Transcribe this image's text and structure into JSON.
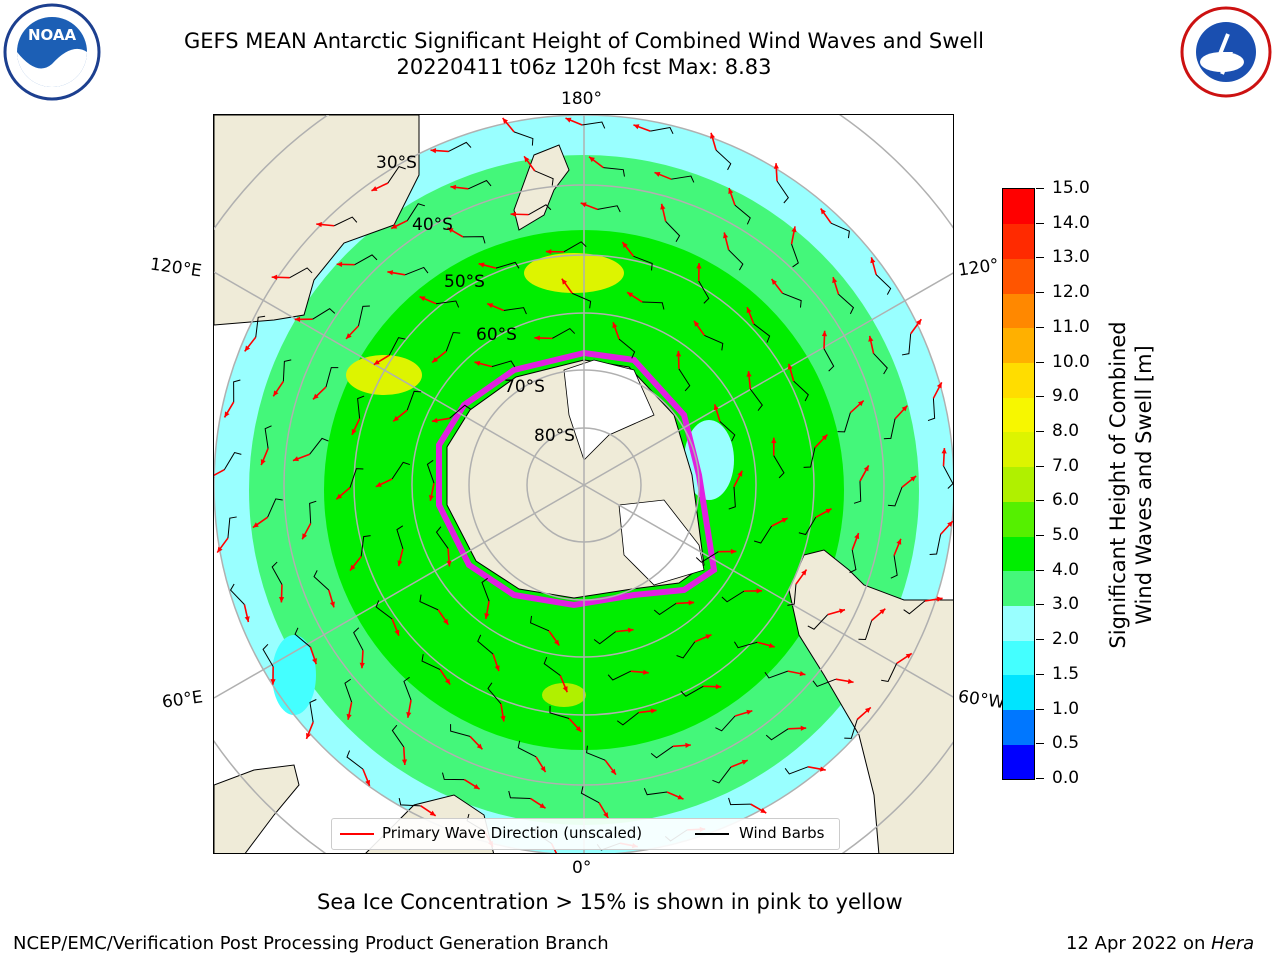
{
  "title": {
    "line1": "GEFS MEAN Antarctic Significant Height of Combined Wind Waves and Swell",
    "line2": "20220411 t06z 120h fcst   Max: 8.83"
  },
  "map": {
    "lon_labels": {
      "top": "180°",
      "bottom": "0°",
      "left_upper": "120°E",
      "left_lower": "60°E",
      "right_upper": "120°",
      "right_lower": "60°W"
    },
    "lat_labels": [
      "30°S",
      "40°S",
      "50°S",
      "60°S",
      "70°S",
      "80°S"
    ],
    "colors": {
      "land": "#efebd8",
      "coast": "#000000",
      "grid": "#b0b0b0",
      "ice_edge": "#e020e0",
      "wave_arrow": "#ff0000",
      "barb": "#000000"
    }
  },
  "colorbar": {
    "label_line1": "Significant Height of Combined",
    "label_line2": "Wind Waves and Swell [m]",
    "ticks": [
      "0.0",
      "0.5",
      "1.0",
      "1.5",
      "2.0",
      "3.0",
      "4.0",
      "5.0",
      "6.0",
      "7.0",
      "8.0",
      "9.0",
      "10.0",
      "11.0",
      "12.0",
      "13.0",
      "14.0",
      "15.0"
    ],
    "levels": [
      {
        "range": "0.0-0.5",
        "color": "#0000ff"
      },
      {
        "range": "0.5-1.0",
        "color": "#0077ff"
      },
      {
        "range": "1.0-1.5",
        "color": "#00e4ff"
      },
      {
        "range": "1.5-2.0",
        "color": "#44ffff"
      },
      {
        "range": "2.0-3.0",
        "color": "#99ffff"
      },
      {
        "range": "3.0-4.0",
        "color": "#44f77a"
      },
      {
        "range": "4.0-5.0",
        "color": "#00ee00"
      },
      {
        "range": "5.0-6.0",
        "color": "#55f000"
      },
      {
        "range": "6.0-7.0",
        "color": "#b0f000"
      },
      {
        "range": "7.0-8.0",
        "color": "#ddf400"
      },
      {
        "range": "8.0-9.0",
        "color": "#f7f700"
      },
      {
        "range": "9.0-10.0",
        "color": "#ffdd00"
      },
      {
        "range": "10.0-11.0",
        "color": "#ffb000"
      },
      {
        "range": "11.0-12.0",
        "color": "#ff8800"
      },
      {
        "range": "12.0-13.0",
        "color": "#ff5500"
      },
      {
        "range": "13.0-14.0",
        "color": "#ff2a00"
      },
      {
        "range": "14.0-15.0",
        "color": "#ff0000"
      }
    ]
  },
  "legend": {
    "primary_wave": "Primary Wave Direction (unscaled)",
    "wind_barbs": "Wind Barbs",
    "primary_color": "#ff0000",
    "barb_color": "#000000"
  },
  "caption": "Sea Ice Concentration > 15% is shown in pink to yellow",
  "footer": {
    "left": "NCEP/EMC/Verification Post Processing Product Generation Branch",
    "date": "12 Apr 2022 on ",
    "machine": "Hera"
  },
  "logos": {
    "left": "NOAA",
    "right": "NATIONAL WEATHER SERVICE"
  }
}
